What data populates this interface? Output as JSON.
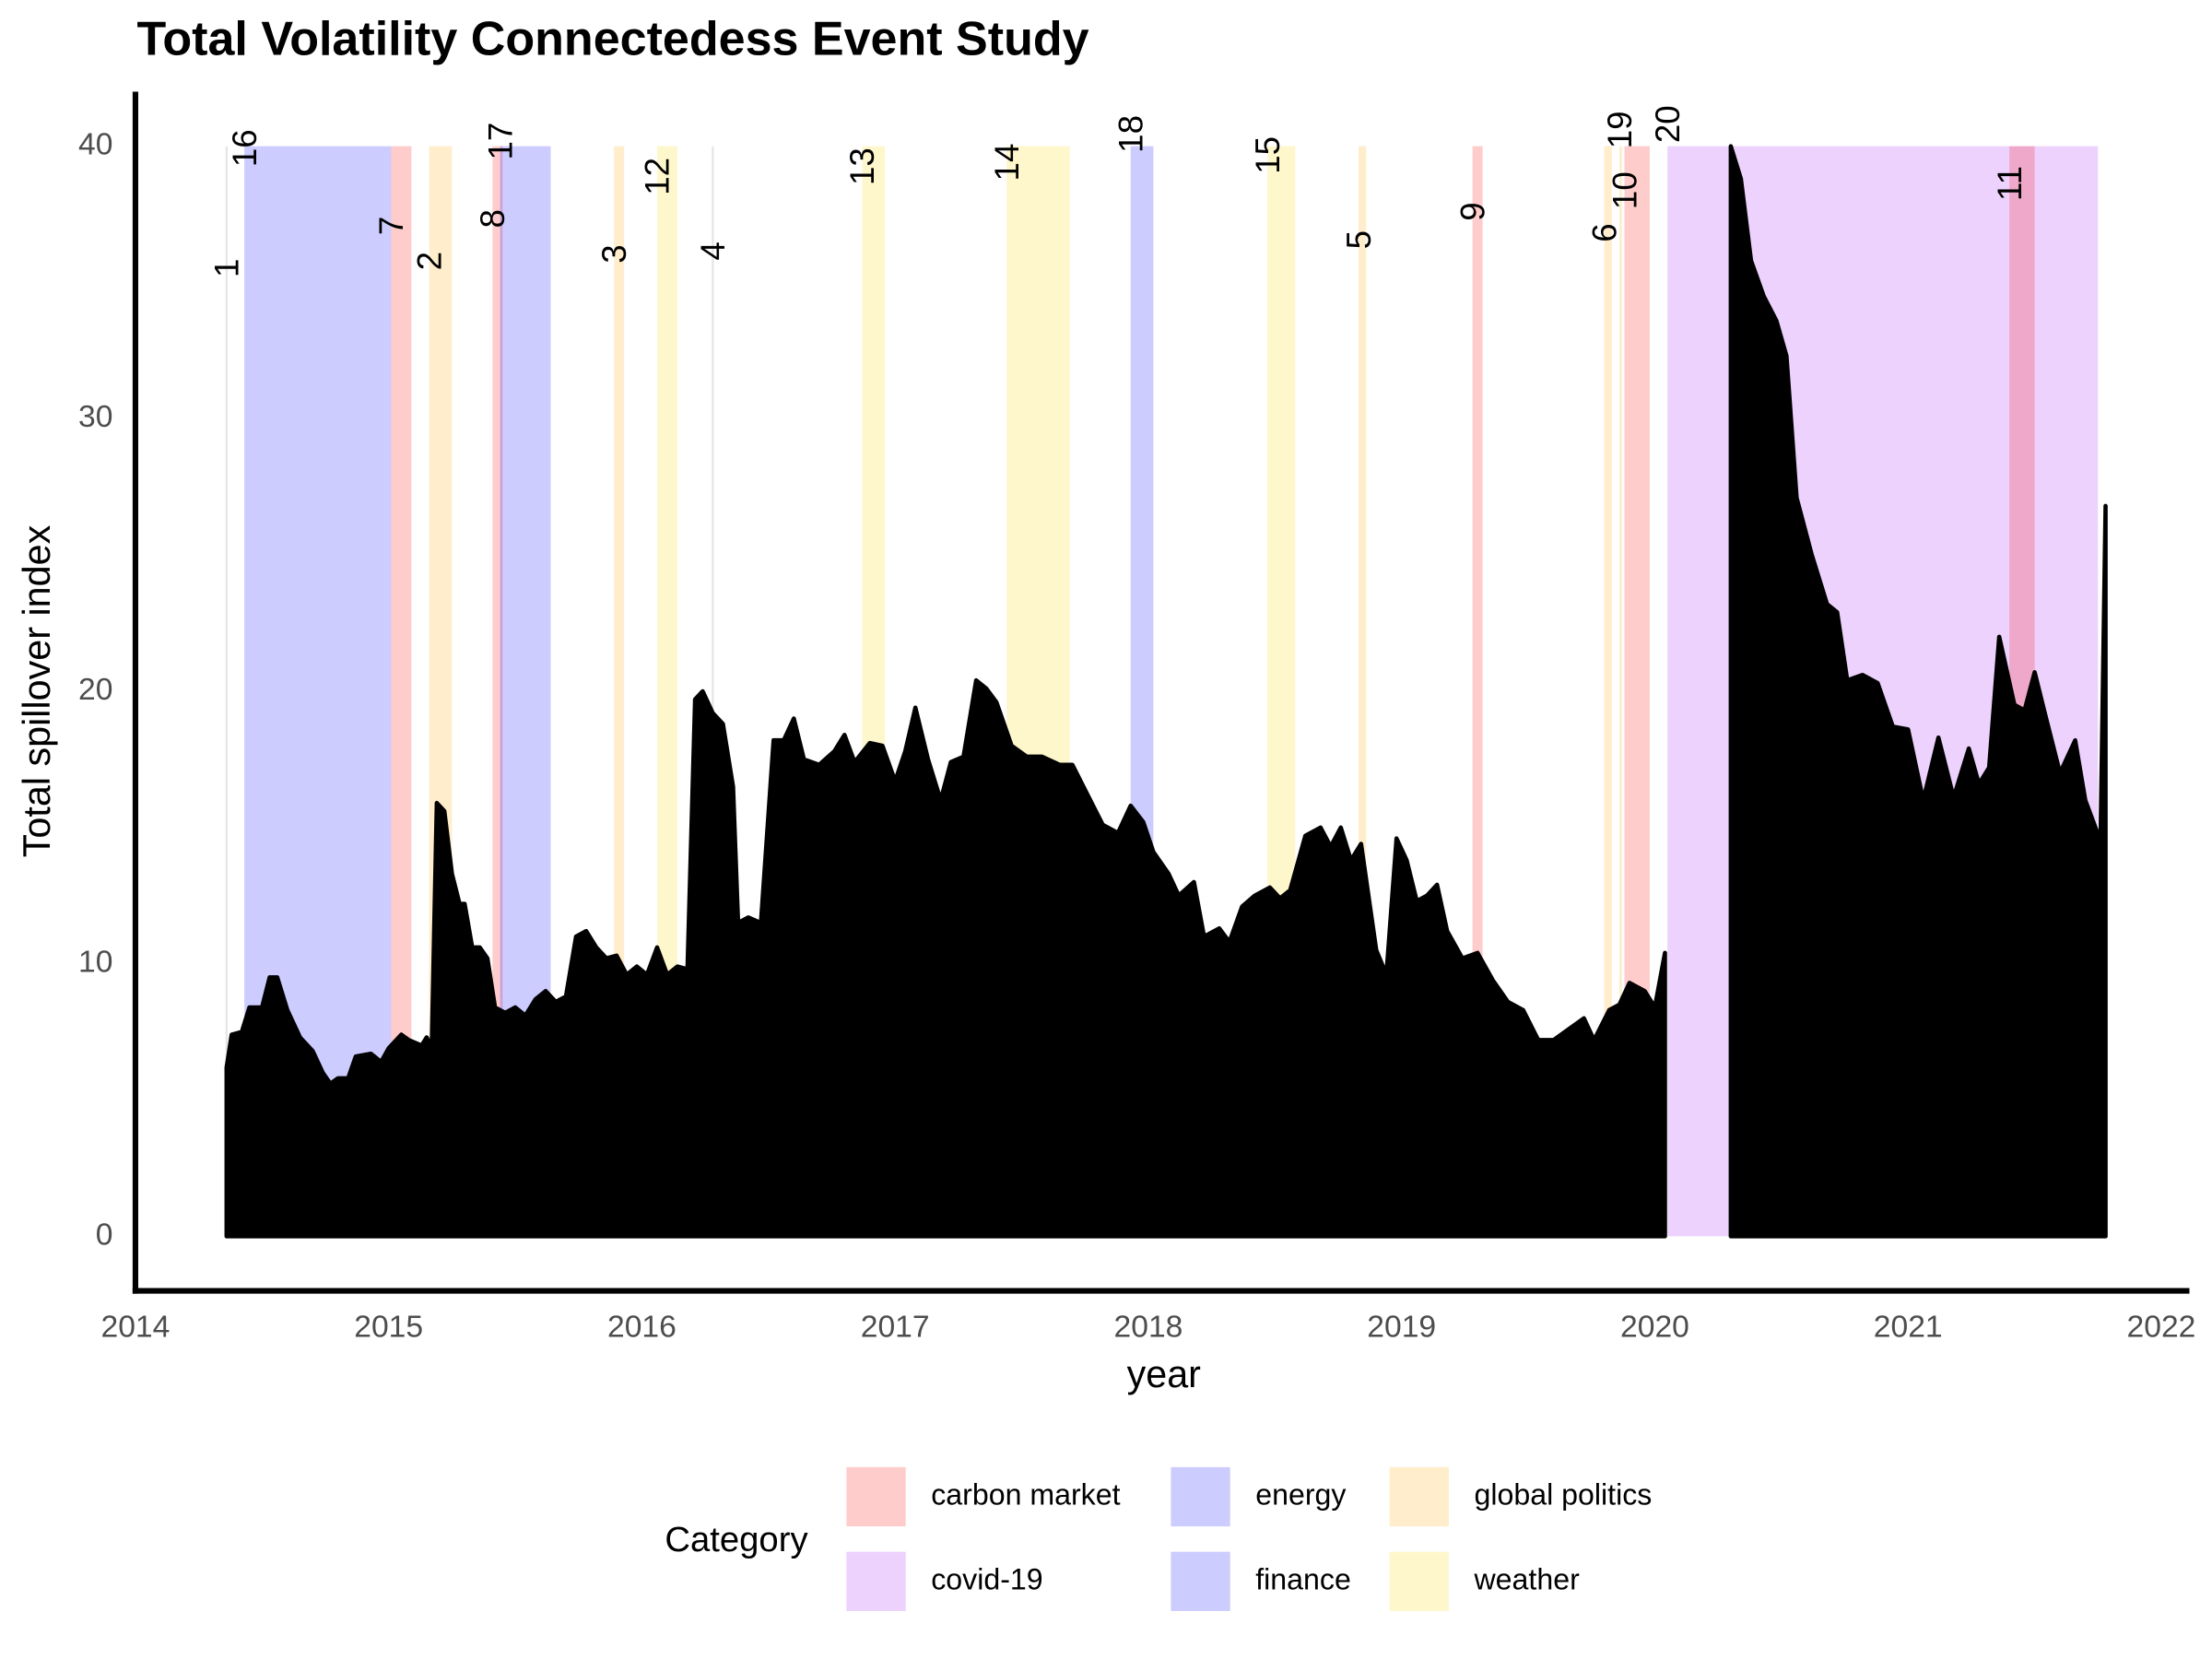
{
  "chart_data": {
    "type": "area",
    "title": "Total Volatility Connectedess Event Study",
    "x_label": "year",
    "y_label": "Total spillover index",
    "xlim": [
      2014,
      2022.1
    ],
    "ylim": [
      -2,
      42
    ],
    "xticks": [
      2014,
      2015,
      2016,
      2017,
      2018,
      2019,
      2020,
      2021,
      2022
    ],
    "yticks": [
      0,
      10,
      20,
      30,
      40
    ],
    "color": "#000000",
    "x": [
      2014.36,
      2014.38,
      2014.42,
      2014.45,
      2014.5,
      2014.53,
      2014.56,
      2014.6,
      2014.65,
      2014.7,
      2014.74,
      2014.77,
      2014.8,
      2014.84,
      2014.87,
      2014.93,
      2014.97,
      2015.0,
      2015.05,
      2015.08,
      2015.13,
      2015.15,
      2015.17,
      2015.19,
      2015.22,
      2015.25,
      2015.28,
      2015.3,
      2015.33,
      2015.36,
      2015.39,
      2015.42,
      2015.46,
      2015.5,
      2015.54,
      2015.58,
      2015.62,
      2015.66,
      2015.7,
      2015.74,
      2015.78,
      2015.82,
      2015.86,
      2015.9,
      2015.94,
      2015.98,
      2016.02,
      2016.06,
      2016.1,
      2016.14,
      2016.18,
      2016.21,
      2016.24,
      2016.28,
      2016.32,
      2016.36,
      2016.38,
      2016.42,
      2016.47,
      2016.52,
      2016.56,
      2016.6,
      2016.64,
      2016.7,
      2016.76,
      2016.8,
      2016.84,
      2016.9,
      2016.95,
      2017.0,
      2017.04,
      2017.08,
      2017.13,
      2017.18,
      2017.22,
      2017.27,
      2017.32,
      2017.36,
      2017.4,
      2017.46,
      2017.52,
      2017.58,
      2017.65,
      2017.7,
      2017.76,
      2017.82,
      2017.88,
      2017.93,
      2017.98,
      2018.02,
      2018.08,
      2018.12,
      2018.18,
      2018.22,
      2018.28,
      2018.32,
      2018.37,
      2018.42,
      2018.48,
      2018.52,
      2018.56,
      2018.62,
      2018.68,
      2018.72,
      2018.76,
      2018.8,
      2018.84,
      2018.9,
      2018.94,
      2018.98,
      2019.02,
      2019.06,
      2019.1,
      2019.14,
      2019.18,
      2019.24,
      2019.3,
      2019.36,
      2019.42,
      2019.48,
      2019.54,
      2019.6,
      2019.66,
      2019.72,
      2019.76,
      2019.82,
      2019.86,
      2019.9,
      2019.96,
      2020.0,
      2020.04,
      2020.07,
      2020.3,
      2020.34,
      2020.38,
      2020.43,
      2020.48,
      2020.52,
      2020.56,
      2020.62,
      2020.68,
      2020.72,
      2020.76,
      2020.82,
      2020.88,
      2020.94,
      2021.0,
      2021.06,
      2021.12,
      2021.18,
      2021.24,
      2021.28,
      2021.32,
      2021.36,
      2021.42,
      2021.46,
      2021.5,
      2021.54,
      2021.6,
      2021.66,
      2021.7,
      2021.76,
      2021.78
    ],
    "values": [
      6.2,
      7.4,
      7.5,
      8.4,
      8.4,
      9.5,
      9.5,
      8.3,
      7.3,
      6.8,
      6.0,
      5.6,
      5.8,
      5.8,
      6.6,
      6.7,
      6.4,
      6.9,
      7.4,
      7.2,
      7.0,
      7.3,
      6.9,
      15.9,
      15.6,
      13.3,
      12.2,
      12.2,
      10.6,
      10.6,
      10.2,
      8.4,
      8.2,
      8.4,
      8.1,
      8.7,
      9.0,
      8.6,
      8.8,
      11.0,
      11.2,
      10.6,
      10.2,
      10.3,
      9.6,
      9.9,
      9.6,
      10.6,
      9.6,
      9.9,
      9.8,
      19.7,
      20.0,
      19.2,
      18.8,
      16.5,
      11.5,
      11.7,
      11.5,
      18.2,
      18.2,
      19.0,
      17.5,
      17.3,
      17.8,
      18.4,
      17.4,
      18.1,
      18.0,
      16.7,
      17.8,
      19.4,
      17.5,
      16.0,
      17.4,
      17.6,
      20.4,
      20.1,
      19.6,
      18.0,
      17.6,
      17.6,
      17.3,
      17.3,
      16.2,
      15.1,
      14.8,
      15.8,
      15.2,
      14.1,
      13.3,
      12.5,
      13.0,
      11.0,
      11.3,
      10.8,
      12.1,
      12.5,
      12.8,
      12.4,
      12.7,
      14.7,
      15.0,
      14.3,
      15.0,
      13.8,
      14.4,
      10.5,
      9.6,
      14.6,
      13.8,
      12.3,
      12.5,
      12.9,
      11.2,
      10.2,
      10.4,
      9.4,
      8.6,
      8.3,
      7.2,
      7.2,
      7.6,
      8.0,
      7.2,
      8.3,
      8.5,
      9.3,
      9.0,
      8.4,
      10.4,
      null,
      40.0,
      38.8,
      35.8,
      34.5,
      33.6,
      32.3,
      27.1,
      25.0,
      23.2,
      22.9,
      20.4,
      20.6,
      20.3,
      18.7,
      18.6,
      16.0,
      18.3,
      16.1,
      17.9,
      16.6,
      17.2,
      22.0,
      19.5,
      19.3,
      20.7,
      19.2,
      17.0,
      18.2,
      16.0,
      14.5,
      26.8
    ],
    "events": [
      {
        "label": "1",
        "start": 2014.36,
        "end": 2014.36,
        "category": null
      },
      {
        "label": "16",
        "start": 2014.43,
        "end": 2015.01,
        "category": "energy"
      },
      {
        "label": "7",
        "start": 2015.01,
        "end": 2015.09,
        "category": "carbon market"
      },
      {
        "label": "2",
        "start": 2015.16,
        "end": 2015.25,
        "category": "global politics"
      },
      {
        "label": "8",
        "start": 2015.41,
        "end": 2015.45,
        "category": "carbon market"
      },
      {
        "label": "17",
        "start": 2015.44,
        "end": 2015.64,
        "category": "energy"
      },
      {
        "label": "3",
        "start": 2015.89,
        "end": 2015.93,
        "category": "global politics"
      },
      {
        "label": "12",
        "start": 2016.06,
        "end": 2016.14,
        "category": "weather"
      },
      {
        "label": "4",
        "start": 2016.28,
        "end": 2016.28,
        "category": null
      },
      {
        "label": "13",
        "start": 2016.87,
        "end": 2016.96,
        "category": "weather"
      },
      {
        "label": "14",
        "start": 2017.44,
        "end": 2017.69,
        "category": "weather"
      },
      {
        "label": "18",
        "start": 2017.93,
        "end": 2018.02,
        "category": "finance"
      },
      {
        "label": "15",
        "start": 2018.47,
        "end": 2018.58,
        "category": "weather"
      },
      {
        "label": "5",
        "start": 2018.83,
        "end": 2018.86,
        "category": "global politics"
      },
      {
        "label": "9",
        "start": 2019.28,
        "end": 2019.32,
        "category": "carbon market"
      },
      {
        "label": "6",
        "start": 2019.8,
        "end": 2019.83,
        "category": "global politics"
      },
      {
        "label": "19",
        "start": 2019.86,
        "end": 2019.87,
        "category": "global politics"
      },
      {
        "label": "10",
        "start": 2019.88,
        "end": 2019.98,
        "category": "carbon market"
      },
      {
        "label": "20",
        "start": 2020.05,
        "end": 2021.75,
        "category": "covid-19"
      },
      {
        "label": "11",
        "start": 2021.4,
        "end": 2021.5,
        "category": "carbon market"
      }
    ],
    "legend": {
      "title": "Category",
      "items": [
        {
          "name": "carbon market",
          "color": "#ff0000"
        },
        {
          "name": "covid-19",
          "color": "#a020f0"
        },
        {
          "name": "energy",
          "color": "#0000ff"
        },
        {
          "name": "finance",
          "color": "#0000ff"
        },
        {
          "name": "global politics",
          "color": "#ffa500"
        },
        {
          "name": "weather",
          "color": "#ffd700"
        }
      ]
    }
  }
}
